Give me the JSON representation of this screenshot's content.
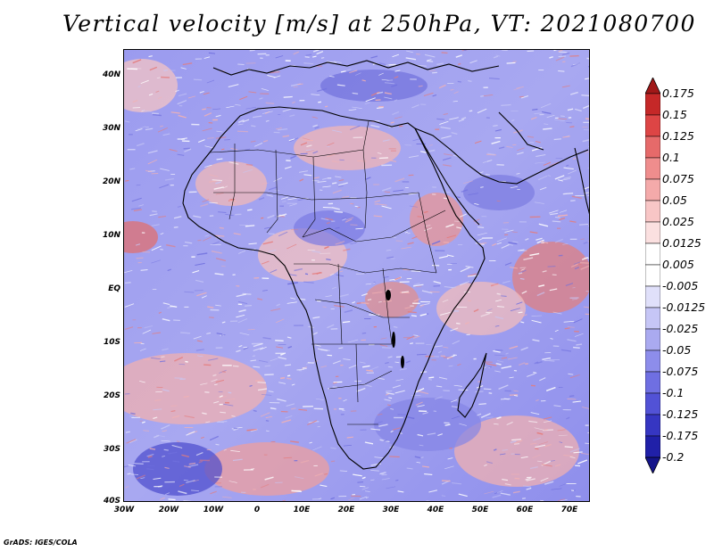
{
  "title": "Vertical velocity [m/s] at 250hPa, VT: 2021080700",
  "credit": "GrADS: IGES/COLA",
  "variable": "Vertical velocity",
  "units": "m/s",
  "level": "250hPa",
  "valid_time": "2021080700",
  "map": {
    "lat_range": [
      -40,
      45
    ],
    "lon_range": [
      -30,
      75
    ],
    "lat_ticks": [
      "40N",
      "30N",
      "20N",
      "10N",
      "EQ",
      "10S",
      "20S",
      "30S",
      "40S"
    ],
    "lon_ticks": [
      "30W",
      "20W",
      "10W",
      "0",
      "10E",
      "20E",
      "30E",
      "40E",
      "50E",
      "60E",
      "70E"
    ],
    "lat_tick_values": [
      40,
      30,
      20,
      10,
      0,
      -10,
      -20,
      -30,
      -40
    ],
    "lon_tick_values": [
      -30,
      -20,
      -10,
      0,
      10,
      20,
      30,
      40,
      50,
      60,
      70
    ]
  },
  "colorbar": {
    "labels": [
      "0.175",
      "0.15",
      "0.125",
      "0.1",
      "0.075",
      "0.05",
      "0.025",
      "0.0125",
      "0.005",
      "-0.005",
      "-0.0125",
      "-0.025",
      "-0.05",
      "-0.075",
      "-0.1",
      "-0.125",
      "-0.175",
      "-0.2"
    ],
    "colors": [
      "#a01818",
      "#c52828",
      "#dd4545",
      "#e66a6a",
      "#ef8d8d",
      "#f4aaaa",
      "#f8c6c6",
      "#fbe0e0",
      "#ffffff",
      "#ffffff",
      "#e0e0fa",
      "#c6c6f6",
      "#aaaaf0",
      "#8d8deb",
      "#6f6fe2",
      "#5252d6",
      "#3636c2",
      "#2020a8",
      "#14148a"
    ]
  }
}
